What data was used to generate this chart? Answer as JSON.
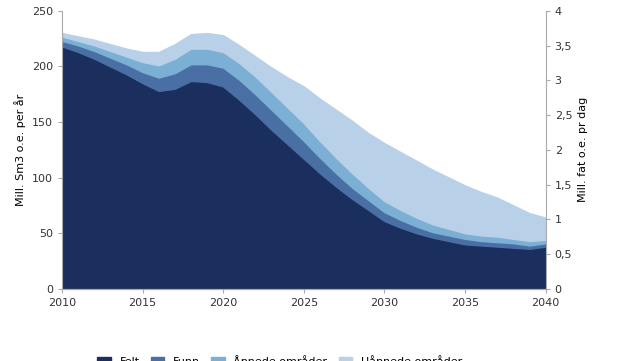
{
  "years": [
    2010,
    2011,
    2012,
    2013,
    2014,
    2015,
    2016,
    2017,
    2018,
    2019,
    2020,
    2021,
    2022,
    2023,
    2024,
    2025,
    2026,
    2027,
    2028,
    2029,
    2030,
    2031,
    2032,
    2033,
    2034,
    2035,
    2036,
    2037,
    2038,
    2039,
    2040
  ],
  "felt": [
    218,
    213,
    207,
    200,
    193,
    185,
    178,
    180,
    187,
    186,
    182,
    170,
    157,
    143,
    130,
    117,
    104,
    92,
    81,
    71,
    61,
    55,
    50,
    46,
    43,
    40,
    39,
    38,
    37,
    36,
    38
  ],
  "funn": [
    5,
    6,
    7,
    8,
    9,
    10,
    12,
    14,
    15,
    16,
    17,
    18,
    18,
    18,
    17,
    16,
    14,
    12,
    10,
    9,
    8,
    7,
    6,
    5,
    5,
    5,
    4,
    4,
    4,
    3,
    3
  ],
  "apnede": [
    4,
    4,
    5,
    6,
    7,
    9,
    11,
    13,
    14,
    14,
    14,
    15,
    16,
    16,
    16,
    16,
    15,
    14,
    13,
    11,
    10,
    9,
    8,
    7,
    6,
    5,
    5,
    5,
    4,
    4,
    3
  ],
  "uapnede": [
    3,
    4,
    5,
    6,
    7,
    9,
    12,
    13,
    13,
    14,
    15,
    16,
    18,
    22,
    27,
    33,
    38,
    43,
    47,
    49,
    52,
    52,
    51,
    49,
    46,
    43,
    39,
    35,
    30,
    25,
    20
  ],
  "color_felt": "#1b2f5e",
  "color_funn": "#4a6fa5",
  "color_apnede": "#7bafd4",
  "color_uapnede": "#b8d0e8",
  "ylabel_left": "Mill. Sm3 o.e. per år",
  "ylabel_right": "Mill. fat o.e. pr dag",
  "ylim_left": [
    0,
    250
  ],
  "ylim_right": [
    0,
    4
  ],
  "yticks_left": [
    0,
    50,
    100,
    150,
    200,
    250
  ],
  "yticks_right": [
    0,
    0.5,
    1.0,
    1.5,
    2.0,
    2.5,
    3.0,
    3.5,
    4.0
  ],
  "ytick_labels_right": [
    "0",
    "0,5",
    "1",
    "1,5",
    "2",
    "2,5",
    "3",
    "3,5",
    "4"
  ],
  "xticks": [
    2010,
    2015,
    2020,
    2025,
    2030,
    2035,
    2040
  ],
  "legend_labels": [
    "Felt",
    "Funn",
    "Åpnede områder",
    "Uåpnede områder"
  ],
  "background_color": "#ffffff"
}
